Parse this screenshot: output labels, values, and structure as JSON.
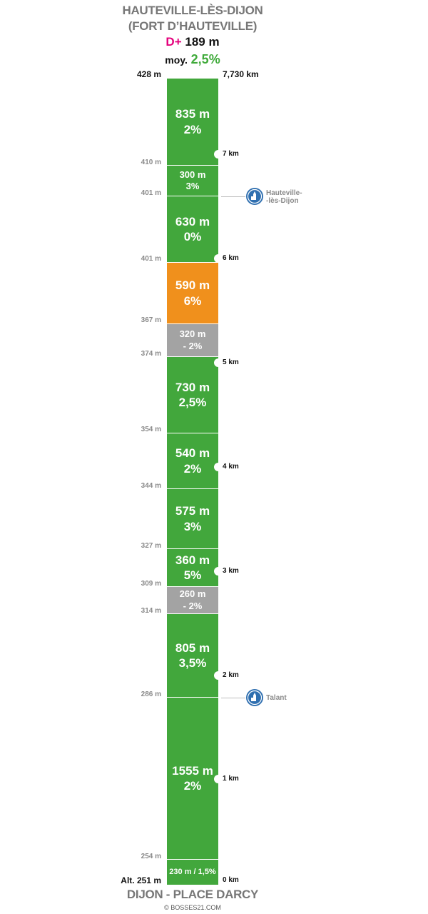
{
  "header": {
    "title_line1": "HAUTEVILLE-LÈS-DIJON",
    "title_line2": "(FORT D’HAUTEVILLE)",
    "dplus_label": "D+",
    "dplus_value": "189 m",
    "avg_label": "moy.",
    "avg_value": "2,5%",
    "top_altitude": "428 m",
    "total_distance": "7,730 km"
  },
  "colors": {
    "green": "#42a73c",
    "orange": "#f0901c",
    "grey": "#a3a3a3",
    "dplus": "#e4007c",
    "poi": "#2f6fb0"
  },
  "segments": [
    {
      "length": "835 m",
      "grade": "2%",
      "color": "green"
    },
    {
      "length": "300 m",
      "grade": "3%",
      "color": "green"
    },
    {
      "length": "630 m",
      "grade": "0%",
      "color": "green"
    },
    {
      "length": "590 m",
      "grade": "6%",
      "color": "orange"
    },
    {
      "length": "320 m",
      "grade": "- 2%",
      "color": "grey"
    },
    {
      "length": "730 m",
      "grade": "2,5%",
      "color": "green"
    },
    {
      "length": "540 m",
      "grade": "2%",
      "color": "green"
    },
    {
      "length": "575 m",
      "grade": "3%",
      "color": "green"
    },
    {
      "length": "360 m",
      "grade": "5%",
      "color": "green"
    },
    {
      "length": "260 m",
      "grade": "- 2%",
      "color": "grey"
    },
    {
      "length": "805 m",
      "grade": "3,5%",
      "color": "green"
    },
    {
      "length": "1555 m",
      "grade": "2%",
      "color": "green"
    },
    {
      "length": "230 m / 1,5%",
      "grade": "",
      "color": "green"
    }
  ],
  "altitudes": [
    "410 m",
    "401 m",
    "401 m",
    "367 m",
    "374 m",
    "354 m",
    "344 m",
    "327 m",
    "309 m",
    "314 m",
    "286 m",
    "254 m"
  ],
  "km_markers": [
    "7 km",
    "6 km",
    "5 km",
    "4 km",
    "3 km",
    "2 km",
    "1 km",
    "0 km"
  ],
  "pois": [
    {
      "name_line1": "Hauteville-",
      "name_line2": "-lès-Dijon",
      "icon": "church-icon"
    },
    {
      "name_line1": "Talant",
      "name_line2": "",
      "icon": "church-icon"
    }
  ],
  "footer": {
    "start_altitude": "Alt. 251 m",
    "start_name": "DIJON - PLACE DARCY",
    "copyright": "© BOSSES21.COM"
  }
}
